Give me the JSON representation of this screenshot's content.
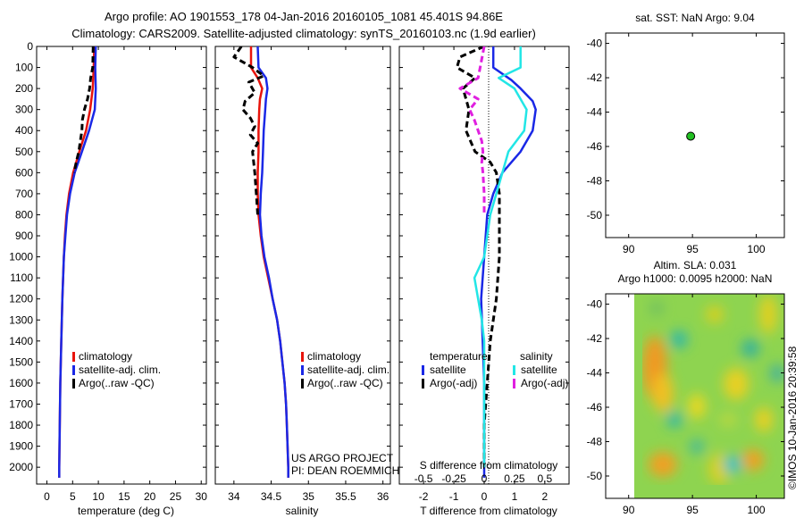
{
  "title_line1": "Argo profile: AO 1901553_178 04-Jan-2016 20160105_1081 45.401S 94.86E",
  "title_line2": "Climatology: CARS2009. Satellite-adjusted climatology: synTS_20160103.nc (1.9d earlier)",
  "colors": {
    "climatology": "#e8140c",
    "satellite": "#1a28e6",
    "argo": "#000000",
    "sat_salinity": "#22e6e6",
    "argo_salinity": "#e020e0",
    "marker": "#22c022"
  },
  "chart_data": [
    {
      "type": "line",
      "id": "temperature",
      "xlabel": "temperature (deg C)",
      "xlim": [
        -2,
        31
      ],
      "xticks": [
        0,
        5,
        10,
        15,
        20,
        25,
        30
      ],
      "ylim": [
        2080,
        0
      ],
      "yticks": [
        0,
        100,
        200,
        300,
        400,
        500,
        600,
        700,
        800,
        900,
        1000,
        1100,
        1200,
        1300,
        1400,
        1500,
        1600,
        1700,
        1800,
        1900,
        2000
      ],
      "legend": [
        "climatology",
        "satellite-adj. clim.",
        "Argo(..raw -QC)"
      ],
      "series": [
        {
          "name": "climatology",
          "depth": [
            0,
            100,
            200,
            300,
            400,
            500,
            600,
            700,
            800,
            900,
            1000,
            1200,
            1400,
            1600,
            1800,
            2000,
            2050
          ],
          "values": [
            9.2,
            9.1,
            8.9,
            8.4,
            7.6,
            6.3,
            5.1,
            4.3,
            3.8,
            3.5,
            3.3,
            3.0,
            2.8,
            2.6,
            2.5,
            2.4,
            2.4
          ]
        },
        {
          "name": "satellite-adj. clim.",
          "depth": [
            0,
            100,
            200,
            300,
            400,
            500,
            600,
            700,
            800,
            900,
            1000,
            1200,
            1400,
            1600,
            1800,
            2000,
            2050
          ],
          "values": [
            9.5,
            9.4,
            9.5,
            9.3,
            8.2,
            6.8,
            5.4,
            4.5,
            3.9,
            3.6,
            3.3,
            3.0,
            2.8,
            2.6,
            2.5,
            2.4,
            2.4
          ]
        },
        {
          "name": "Argo(..raw -QC)",
          "depth": [
            0,
            100,
            150,
            200,
            250,
            300,
            350,
            400,
            450,
            500,
            550,
            600
          ],
          "values": [
            9.0,
            8.9,
            8.5,
            8.3,
            7.9,
            7.3,
            6.9,
            6.8,
            6.5,
            6.2,
            5.7,
            5.3
          ]
        }
      ]
    },
    {
      "type": "line",
      "id": "salinity",
      "xlabel": "salinity",
      "xlim": [
        33.75,
        36.1
      ],
      "xticks": [
        34,
        34.5,
        35,
        35.5,
        36
      ],
      "ylim": [
        2080,
        0
      ],
      "legend": [
        "climatology",
        "satellite-adj. clim.",
        "Argo(..raw -QC)"
      ],
      "annotations": [
        "US ARGO PROJECT",
        "PI: DEAN ROEMMICH"
      ],
      "series": [
        {
          "name": "climatology",
          "depth": [
            0,
            100,
            150,
            200,
            250,
            300,
            400,
            500,
            600,
            700,
            800,
            900,
            1000,
            1100,
            1200,
            1300,
            1400,
            1500,
            1600,
            1700,
            1800,
            1900,
            2000,
            2050
          ],
          "values": [
            34.23,
            34.23,
            34.32,
            34.38,
            34.35,
            34.34,
            34.33,
            34.33,
            34.32,
            34.32,
            34.33,
            34.36,
            34.4,
            34.46,
            34.52,
            34.58,
            34.62,
            34.65,
            34.68,
            34.7,
            34.71,
            34.72,
            34.73,
            34.73
          ]
        },
        {
          "name": "satellite-adj. clim.",
          "depth": [
            0,
            100,
            150,
            200,
            250,
            300,
            400,
            500,
            600,
            700,
            800,
            900,
            1000,
            1100,
            1200,
            1300,
            1400,
            1500,
            1600,
            1700,
            1800,
            1900,
            2000,
            2050
          ],
          "values": [
            34.32,
            34.33,
            34.43,
            34.45,
            34.43,
            34.42,
            34.4,
            34.39,
            34.38,
            34.36,
            34.35,
            34.37,
            34.41,
            34.47,
            34.52,
            34.58,
            34.62,
            34.65,
            34.68,
            34.7,
            34.71,
            34.72,
            34.73,
            34.73
          ]
        },
        {
          "name": "Argo(..raw -QC)",
          "depth": [
            0,
            50,
            100,
            140,
            170,
            220,
            260,
            300,
            340,
            380,
            420,
            460,
            500,
            600,
            700,
            800
          ],
          "values": [
            34.1,
            34.0,
            34.25,
            34.4,
            34.2,
            34.28,
            34.15,
            34.12,
            34.22,
            34.28,
            34.22,
            34.32,
            34.25,
            34.28,
            34.3,
            34.32
          ]
        }
      ]
    },
    {
      "type": "line",
      "id": "difference",
      "xlabel": "T difference from climatology",
      "xlabel_top": "S difference from climatology",
      "xlim": [
        -2.8,
        2.8
      ],
      "xticks": [
        -2,
        -1,
        0,
        1,
        2
      ],
      "xticks_top": [
        -0.5,
        -0.25,
        0,
        0.25,
        0.5
      ],
      "ylim": [
        2080,
        0
      ],
      "legend_headers": [
        "temperature",
        "salinity"
      ],
      "legend": [
        "satellite",
        "Argo(-adj)",
        "satellite",
        "Argo(-adj)"
      ],
      "series": [
        {
          "name": "temperature satellite",
          "depth": [
            0,
            100,
            160,
            200,
            260,
            300,
            400,
            500,
            600,
            700,
            800,
            1000,
            1200,
            1400,
            1600,
            1800,
            2000,
            2050
          ],
          "values": [
            0.3,
            0.3,
            0.9,
            1.2,
            1.6,
            1.7,
            1.6,
            1.2,
            0.6,
            0.3,
            0.1,
            0.0,
            -0.1,
            -0.05,
            0,
            0,
            0,
            0
          ]
        },
        {
          "name": "temperature Argo(-adj)",
          "depth": [
            0,
            50,
            100,
            150,
            200,
            300,
            400,
            500,
            550,
            600,
            700,
            800,
            900,
            1000,
            1200,
            1400,
            1600,
            1800,
            2000
          ],
          "values": [
            0,
            -0.8,
            -0.9,
            -0.3,
            -0.7,
            -0.5,
            -0.6,
            -0.3,
            0.2,
            0.4,
            0.5,
            0.5,
            0.5,
            0.5,
            0.4,
            0.2,
            0.1,
            0,
            0
          ]
        },
        {
          "name": "salinity satellite",
          "depth": [
            0,
            100,
            150,
            200,
            300,
            400,
            500,
            600,
            700,
            800,
            1000,
            1100,
            1200,
            1300,
            1400,
            1600,
            1800,
            2000
          ],
          "values": [
            0.3,
            0.3,
            0.12,
            0.25,
            0.35,
            0.33,
            0.2,
            0.15,
            0.1,
            0.05,
            0.0,
            -0.08,
            -0.05,
            -0.02,
            0,
            0,
            0,
            0
          ]
        },
        {
          "name": "salinity Argo(-adj)",
          "depth": [
            0,
            150,
            200,
            250,
            300,
            350,
            400,
            450,
            500,
            550,
            600,
            700,
            800
          ],
          "values": [
            0,
            -0.05,
            -0.2,
            -0.05,
            -0.12,
            -0.08,
            -0.05,
            -0.02,
            -0.01,
            -0.02,
            -0.01,
            0,
            0
          ]
        }
      ]
    },
    {
      "type": "scatter",
      "id": "position",
      "title": "sat. SST: NaN Argo: 9.04",
      "xlim": [
        88.2,
        102.2
      ],
      "xticks": [
        90,
        95,
        100
      ],
      "ylim": [
        -51.3,
        -39.4
      ],
      "yticks": [
        -40,
        -42,
        -44,
        -46,
        -48,
        -50
      ],
      "points": [
        {
          "x": 94.86,
          "y": -45.401
        }
      ]
    },
    {
      "type": "heatmap",
      "id": "sla",
      "title_line1": "Altim. SLA: 0.031",
      "title_line2": "Argo h1000: 0.0095 h2000: NaN",
      "xlim": [
        88.2,
        102.2
      ],
      "xticks": [
        90,
        95,
        100
      ],
      "ylim": [
        -51.3,
        -39.4
      ],
      "yticks": [
        -40,
        -42,
        -44,
        -46,
        -48,
        -50
      ],
      "side_label": "©IMOS 10-Jan-2016 20:39:58",
      "point": {
        "x": 94.86,
        "y": -45.401
      }
    }
  ]
}
